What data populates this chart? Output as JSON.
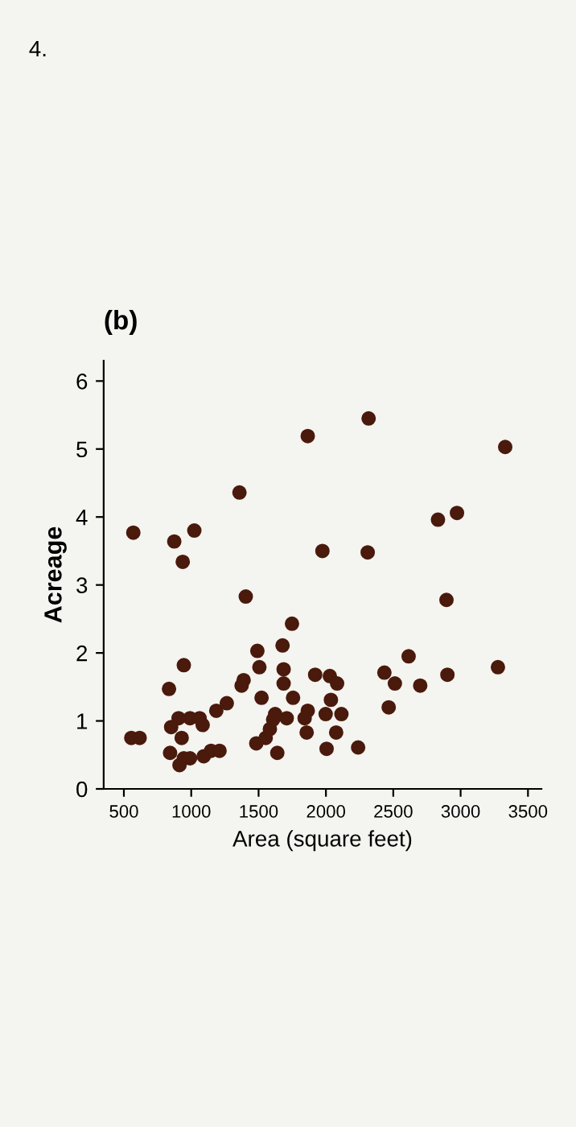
{
  "chart_data": {
    "type": "scatter",
    "title": "(b)",
    "xlabel": "Area (square feet)",
    "ylabel": "Acreage",
    "annotations": [
      "4."
    ],
    "x": [
      555,
      617,
      570,
      835,
      843,
      851,
      906,
      913,
      945,
      929,
      874,
      937,
      945,
      1023,
      991,
      991,
      1093,
      1085,
      1062,
      1147,
      1186,
      1210,
      1264,
      1358,
      1374,
      1389,
      1405,
      1483,
      1522,
      1506,
      1491,
      1553,
      1584,
      1608,
      1639,
      1623,
      1686,
      1686,
      1678,
      1709,
      1748,
      1756,
      1857,
      1842,
      1865,
      1920,
      2005,
      1998,
      2037,
      2029,
      2076,
      2083,
      2115,
      2239,
      1865,
      1974,
      2310,
      2317,
      2466,
      2434,
      2512,
      2614,
      2700,
      2902,
      2895,
      2832,
      2973,
      3277,
      3331
    ],
    "series": [
      {
        "color": "#4a1a0c",
        "values": [
          0.75,
          0.75,
          3.77,
          1.47,
          0.53,
          0.91,
          1.04,
          0.35,
          0.45,
          0.75,
          3.64,
          3.34,
          1.82,
          3.8,
          1.04,
          0.45,
          0.48,
          0.94,
          1.04,
          0.56,
          1.15,
          0.56,
          1.26,
          4.36,
          1.52,
          1.6,
          2.83,
          0.67,
          1.34,
          1.79,
          2.03,
          0.75,
          0.88,
          1.02,
          0.53,
          1.1,
          1.55,
          1.76,
          2.11,
          1.04,
          2.43,
          1.34,
          0.83,
          1.04,
          1.15,
          1.68,
          0.59,
          1.1,
          1.31,
          1.66,
          0.83,
          1.55,
          1.1,
          0.61,
          5.19,
          3.5,
          3.48,
          5.45,
          1.2,
          1.71,
          1.55,
          1.95,
          1.52,
          1.68,
          2.78,
          3.96,
          4.06,
          1.79,
          5.03
        ]
      }
    ],
    "xlim": [
      350,
      3600
    ],
    "ylim": [
      0,
      6.3
    ],
    "xticks": [
      500,
      1000,
      1500,
      2000,
      2500,
      3000,
      3500
    ],
    "yticks": [
      0,
      1,
      2,
      3,
      4,
      5,
      6
    ],
    "marker": "circle",
    "grid": false,
    "legend": false
  }
}
